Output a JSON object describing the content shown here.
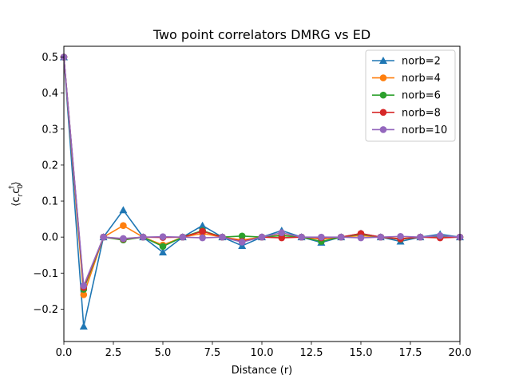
{
  "chart_data": {
    "type": "line",
    "title": "Two point correlators DMRG vs ED",
    "xlabel": "Distance (r)",
    "ylabel_parts": {
      "open": "⟨c",
      "sub1": "r",
      "mid": "c",
      "sub2": "0",
      "sup": "†",
      "close": "⟩"
    },
    "xlim": [
      0,
      20
    ],
    "ylim": [
      -0.29,
      0.53
    ],
    "xticks": [
      0.0,
      2.5,
      5.0,
      7.5,
      10.0,
      12.5,
      15.0,
      17.5,
      20.0
    ],
    "xtick_labels": [
      "0.0",
      "2.5",
      "5.0",
      "7.5",
      "10.0",
      "12.5",
      "15.0",
      "17.5",
      "20.0"
    ],
    "yticks": [
      -0.2,
      -0.1,
      0.0,
      0.1,
      0.2,
      0.3,
      0.4,
      0.5
    ],
    "ytick_labels": [
      "−0.2",
      "−0.1",
      "0.0",
      "0.1",
      "0.2",
      "0.3",
      "0.4",
      "0.5"
    ],
    "grid": false,
    "legend_position": "top-right",
    "x": [
      0,
      1,
      2,
      3,
      4,
      5,
      6,
      7,
      8,
      9,
      10,
      11,
      12,
      13,
      14,
      15,
      16,
      17,
      18,
      19,
      20
    ],
    "series": [
      {
        "name": "norb=2",
        "color": "#1f77b4",
        "marker": "triangle",
        "values": [
          0.5,
          -0.248,
          0.0,
          0.075,
          0.0,
          -0.042,
          0.0,
          0.032,
          0.0,
          -0.024,
          0.0,
          0.018,
          0.0,
          -0.015,
          0.0,
          0.01,
          0.0,
          -0.012,
          0.0,
          0.008,
          0.0
        ]
      },
      {
        "name": "norb=4",
        "color": "#ff7f0e",
        "marker": "circle",
        "values": [
          0.5,
          -0.16,
          0.0,
          0.032,
          0.0,
          -0.022,
          0.0,
          0.01,
          0.0,
          -0.008,
          0.0,
          0.006,
          0.0,
          -0.005,
          0.0,
          0.004,
          0.0,
          -0.004,
          0.0,
          0.003,
          0.0
        ]
      },
      {
        "name": "norb=6",
        "color": "#2ca02c",
        "marker": "circle",
        "values": [
          0.5,
          -0.145,
          0.0,
          -0.008,
          0.0,
          -0.026,
          0.0,
          0.018,
          0.0,
          0.003,
          0.0,
          0.004,
          0.0,
          -0.012,
          0.0,
          0.008,
          0.0,
          -0.006,
          0.0,
          0.002,
          0.0
        ]
      },
      {
        "name": "norb=8",
        "color": "#d62728",
        "marker": "circle",
        "values": [
          0.5,
          -0.14,
          0.0,
          -0.005,
          0.0,
          -0.001,
          0.0,
          0.016,
          0.0,
          -0.012,
          0.0,
          -0.002,
          0.0,
          -0.002,
          0.0,
          0.01,
          0.0,
          -0.005,
          0.0,
          -0.002,
          0.0
        ]
      },
      {
        "name": "norb=10",
        "color": "#9467bd",
        "marker": "circle",
        "values": [
          0.5,
          -0.135,
          0.0,
          -0.004,
          0.0,
          0.001,
          0.0,
          -0.002,
          0.0,
          -0.014,
          0.0,
          0.012,
          0.0,
          0.0,
          0.0,
          -0.002,
          0.0,
          0.002,
          0.0,
          0.004,
          0.0
        ]
      }
    ]
  }
}
